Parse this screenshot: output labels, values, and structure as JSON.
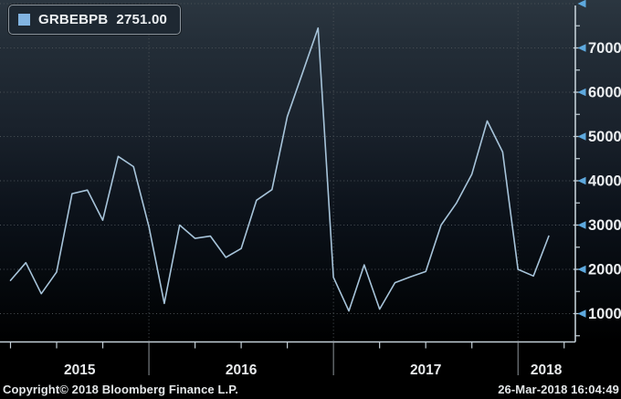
{
  "legend": {
    "series": "GRBEBPB",
    "value": "2751.00"
  },
  "footer": {
    "copyright": "Copyright© 2018 Bloomberg Finance L.P.",
    "timestamp": "26-Mar-2018 16:04:49"
  },
  "colors": {
    "line": "#a7c4da",
    "axis": "#c2ced6",
    "grid": "#4b5257",
    "separator": "#8e959b",
    "arrow": "#5ea9de",
    "tick_label": "#eceff1",
    "year_label": "#e8eaec",
    "legend_swatch": "#82b4e1"
  },
  "chart_data": {
    "type": "line",
    "series_name": "GRBEBPB",
    "last_value": 2751.0,
    "x": [
      "2015-04",
      "2015-05",
      "2015-06",
      "2015-07",
      "2015-08",
      "2015-09",
      "2015-10",
      "2015-11",
      "2015-12",
      "2016-01",
      "2016-02",
      "2016-03",
      "2016-04",
      "2016-05",
      "2016-06",
      "2016-07",
      "2016-08",
      "2016-09",
      "2016-10",
      "2016-11",
      "2016-12",
      "2017-01",
      "2017-02",
      "2017-03",
      "2017-04",
      "2017-05",
      "2017-06",
      "2017-07",
      "2017-08",
      "2017-09",
      "2017-10",
      "2017-11",
      "2017-12",
      "2018-01",
      "2018-02",
      "2018-03"
    ],
    "values": [
      1750,
      2150,
      1450,
      1940,
      3710,
      3790,
      3110,
      4550,
      4320,
      2960,
      1230,
      3000,
      2700,
      2750,
      2270,
      2470,
      3560,
      3800,
      5450,
      6450,
      7450,
      1820,
      1060,
      2100,
      1100,
      1700,
      1830,
      1950,
      3000,
      3500,
      4150,
      5350,
      4650,
      2000,
      1850,
      2751
    ],
    "y_ticks": [
      1000,
      2000,
      3000,
      4000,
      5000,
      6000,
      7000
    ],
    "y_minor_step": 500,
    "x_year_labels": [
      "2015",
      "2016",
      "2017",
      "2018"
    ],
    "year_boundary_month_indices": [
      9,
      21,
      33
    ],
    "ylim": [
      500,
      8000
    ],
    "grid": "dotted",
    "legend_position": "top-left",
    "axis_side": "right"
  }
}
